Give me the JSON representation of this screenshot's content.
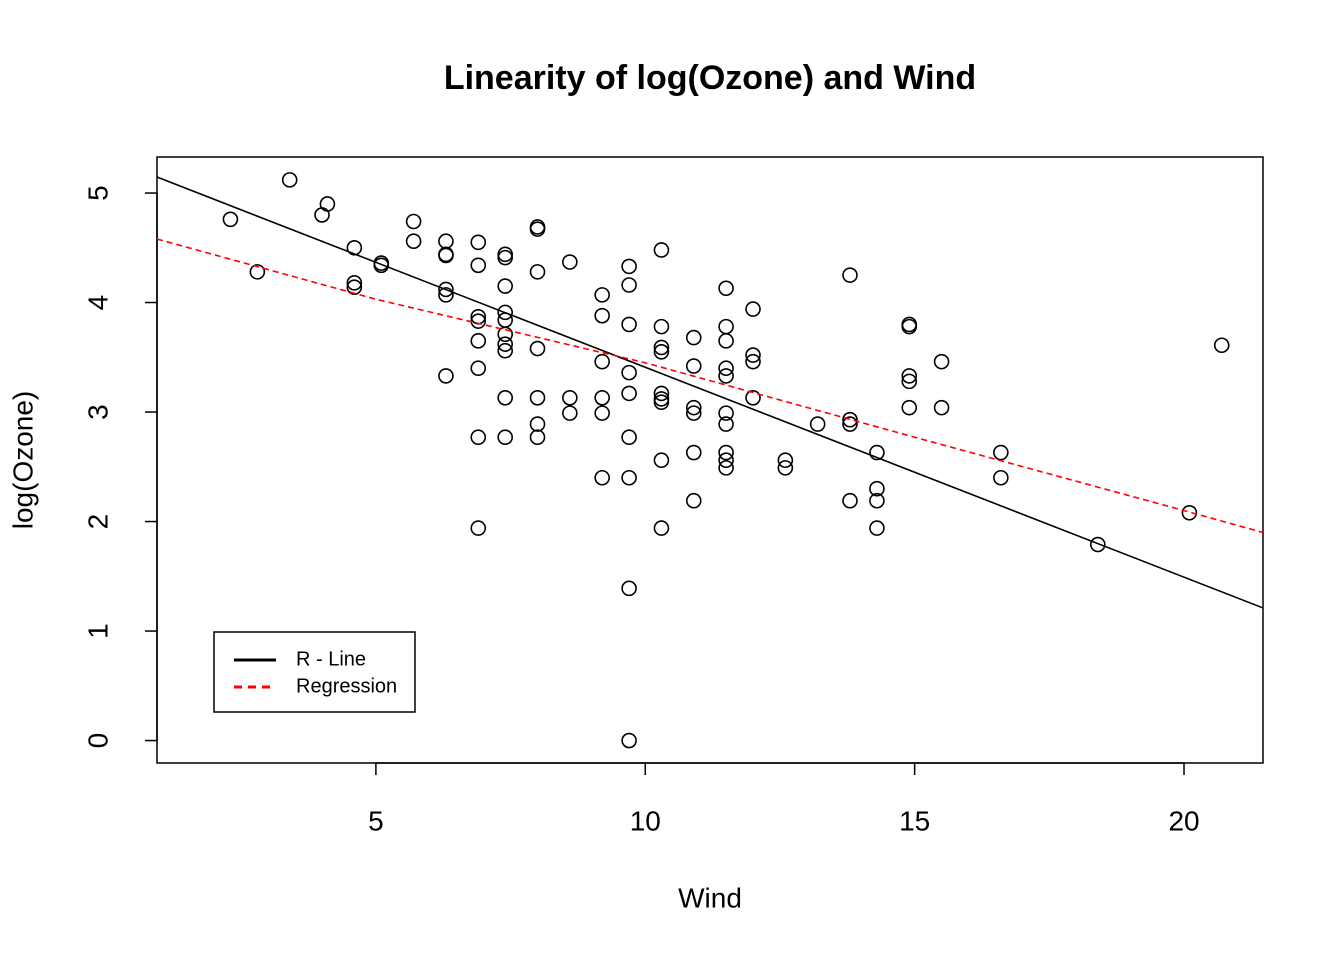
{
  "chart_data": {
    "type": "scatter",
    "title": "Linearity of log(Ozone) and Wind",
    "x_label": "Wind",
    "y_label": "log(Ozone)",
    "xlim": [
      0.937,
      21.466
    ],
    "ylim": [
      -0.205,
      5.329
    ],
    "xticks": [
      5,
      10,
      15,
      20
    ],
    "yticks": [
      0,
      1,
      2,
      3,
      4,
      5
    ],
    "grid": false,
    "legend_position": "bottom-left",
    "color": "#000000",
    "x": [
      2.3,
      2.8,
      3.4,
      4.0,
      4.1,
      4.6,
      4.6,
      4.6,
      5.1,
      5.1,
      5.7,
      5.7,
      6.3,
      6.3,
      6.3,
      6.3,
      6.3,
      6.3,
      6.9,
      6.9,
      6.9,
      6.9,
      6.9,
      6.9,
      6.9,
      6.9,
      7.4,
      7.4,
      7.4,
      7.4,
      7.4,
      7.4,
      7.4,
      7.4,
      7.4,
      7.4,
      8.0,
      8.0,
      8.0,
      8.0,
      8.0,
      8.0,
      8.0,
      8.6,
      8.6,
      8.6,
      9.2,
      9.2,
      9.2,
      9.2,
      9.2,
      9.2,
      9.7,
      9.7,
      9.7,
      9.7,
      9.7,
      9.7,
      9.7,
      9.7,
      9.7,
      10.3,
      10.3,
      10.3,
      10.3,
      10.3,
      10.3,
      10.3,
      10.3,
      10.3,
      10.9,
      10.9,
      10.9,
      10.9,
      10.9,
      10.9,
      11.5,
      11.5,
      11.5,
      11.5,
      11.5,
      11.5,
      11.5,
      11.5,
      11.5,
      11.5,
      12.0,
      12.0,
      12.0,
      12.0,
      12.6,
      12.6,
      13.2,
      13.8,
      13.8,
      13.8,
      13.8,
      14.3,
      14.3,
      14.3,
      14.3,
      14.9,
      14.9,
      14.9,
      14.9,
      14.9,
      15.5,
      15.5,
      16.6,
      16.6,
      18.4,
      20.1,
      20.7
    ],
    "values": [
      4.76,
      4.28,
      5.12,
      4.8,
      4.9,
      4.5,
      4.18,
      4.14,
      4.36,
      4.34,
      4.74,
      4.56,
      4.56,
      4.44,
      4.43,
      4.12,
      4.07,
      3.33,
      4.55,
      4.34,
      3.87,
      3.83,
      3.65,
      3.4,
      2.77,
      1.94,
      4.44,
      4.41,
      4.15,
      3.91,
      3.84,
      3.71,
      3.62,
      3.56,
      3.13,
      2.77,
      4.69,
      4.67,
      4.28,
      3.58,
      3.13,
      2.89,
      2.77,
      4.37,
      3.13,
      2.99,
      4.07,
      3.88,
      3.46,
      3.13,
      2.99,
      2.4,
      4.33,
      4.16,
      3.8,
      3.36,
      3.17,
      2.77,
      2.4,
      1.39,
      0,
      4.48,
      3.78,
      3.59,
      3.55,
      3.17,
      3.12,
      3.09,
      2.56,
      1.94,
      3.68,
      3.42,
      3.04,
      2.99,
      2.63,
      2.19,
      4.13,
      3.78,
      3.65,
      3.4,
      3.33,
      2.99,
      2.89,
      2.63,
      2.56,
      2.49,
      3.94,
      3.52,
      3.46,
      3.13,
      2.56,
      2.49,
      2.89,
      4.25,
      2.93,
      2.89,
      2.19,
      2.63,
      2.3,
      2.19,
      1.94,
      3.8,
      3.78,
      3.33,
      3.28,
      3.04,
      3.46,
      3.04,
      2.63,
      2.4,
      1.79,
      2.08,
      3.61
    ],
    "lines": [
      {
        "name": "R - Line",
        "color": "#000000",
        "dashed": false,
        "x": [
          0.937,
          21.466
        ],
        "values": [
          5.146,
          1.211
        ]
      },
      {
        "name": "Regression",
        "color": "#ff0000",
        "dashed": true,
        "x": [
          0.937,
          5,
          10,
          15,
          20,
          21.466
        ],
        "values": [
          4.58,
          4.03,
          3.45,
          2.77,
          2.1,
          1.9
        ]
      }
    ]
  }
}
